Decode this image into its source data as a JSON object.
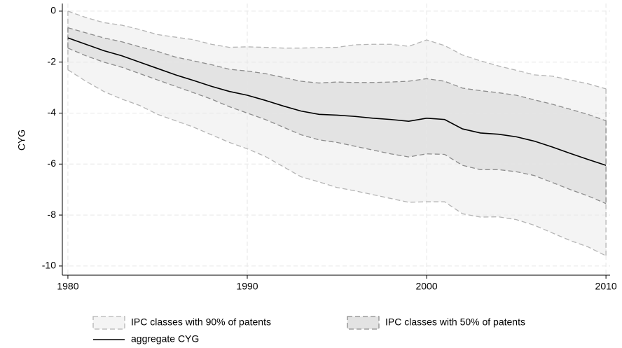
{
  "chart_data": {
    "type": "line",
    "y_label": "CYG",
    "x": [
      1980,
      1981,
      1982,
      1983,
      1984,
      1985,
      1986,
      1987,
      1988,
      1989,
      1990,
      1991,
      1992,
      1993,
      1994,
      1995,
      1996,
      1997,
      1998,
      1999,
      2000,
      2001,
      2002,
      2003,
      2004,
      2005,
      2006,
      2007,
      2008,
      2009,
      2010
    ],
    "series": [
      {
        "name": "IPC classes with 90% of patents",
        "kind": "band",
        "color": "#f4f4f4",
        "edge_color": "#b4b4b4",
        "upper": [
          0,
          -0.25,
          -0.45,
          -0.55,
          -0.72,
          -0.92,
          -1.02,
          -1.12,
          -1.3,
          -1.42,
          -1.4,
          -1.42,
          -1.45,
          -1.45,
          -1.43,
          -1.42,
          -1.32,
          -1.3,
          -1.3,
          -1.38,
          -1.13,
          -1.35,
          -1.72,
          -1.95,
          -2.15,
          -2.32,
          -2.5,
          -2.55,
          -2.7,
          -2.85,
          -3.05
        ],
        "lower": [
          -2.3,
          -2.75,
          -3.15,
          -3.45,
          -3.7,
          -4.05,
          -4.3,
          -4.55,
          -4.85,
          -5.15,
          -5.4,
          -5.7,
          -6.1,
          -6.5,
          -6.7,
          -6.92,
          -7.05,
          -7.2,
          -7.35,
          -7.5,
          -7.48,
          -7.48,
          -7.95,
          -8.08,
          -8.07,
          -8.18,
          -8.4,
          -8.7,
          -9.0,
          -9.25,
          -9.6
        ]
      },
      {
        "name": "IPC classes with 50% of patents",
        "kind": "band",
        "color": "#e3e3e3",
        "edge_color": "#8c8c8c",
        "upper": [
          -0.65,
          -0.85,
          -1.05,
          -1.2,
          -1.4,
          -1.58,
          -1.8,
          -1.95,
          -2.1,
          -2.28,
          -2.35,
          -2.45,
          -2.6,
          -2.75,
          -2.82,
          -2.78,
          -2.8,
          -2.8,
          -2.78,
          -2.75,
          -2.65,
          -2.75,
          -3.02,
          -3.12,
          -3.2,
          -3.3,
          -3.48,
          -3.65,
          -3.85,
          -4.05,
          -4.3
        ],
        "lower": [
          -1.45,
          -1.75,
          -2.0,
          -2.2,
          -2.45,
          -2.7,
          -2.95,
          -3.2,
          -3.45,
          -3.75,
          -4.0,
          -4.25,
          -4.55,
          -4.85,
          -5.05,
          -5.15,
          -5.3,
          -5.45,
          -5.6,
          -5.72,
          -5.6,
          -5.62,
          -6.05,
          -6.22,
          -6.22,
          -6.3,
          -6.45,
          -6.72,
          -7.0,
          -7.25,
          -7.55
        ]
      },
      {
        "name": "aggregate CYG",
        "kind": "line",
        "color": "#000000",
        "values": [
          -1.05,
          -1.3,
          -1.55,
          -1.75,
          -2.0,
          -2.25,
          -2.5,
          -2.72,
          -2.95,
          -3.15,
          -3.3,
          -3.5,
          -3.72,
          -3.92,
          -4.05,
          -4.08,
          -4.13,
          -4.2,
          -4.25,
          -4.32,
          -4.2,
          -4.25,
          -4.62,
          -4.78,
          -4.83,
          -4.93,
          -5.1,
          -5.33,
          -5.58,
          -5.82,
          -6.05
        ]
      }
    ],
    "xlim": [
      1979.69,
      2010.23
    ],
    "xticks": [
      1980,
      1990,
      2000,
      2010
    ],
    "ylim": [
      -10.36,
      0.3
    ],
    "yticks": [
      0,
      -2,
      -4,
      -6,
      -8,
      -10
    ],
    "grid": true,
    "legend": "bottom"
  }
}
